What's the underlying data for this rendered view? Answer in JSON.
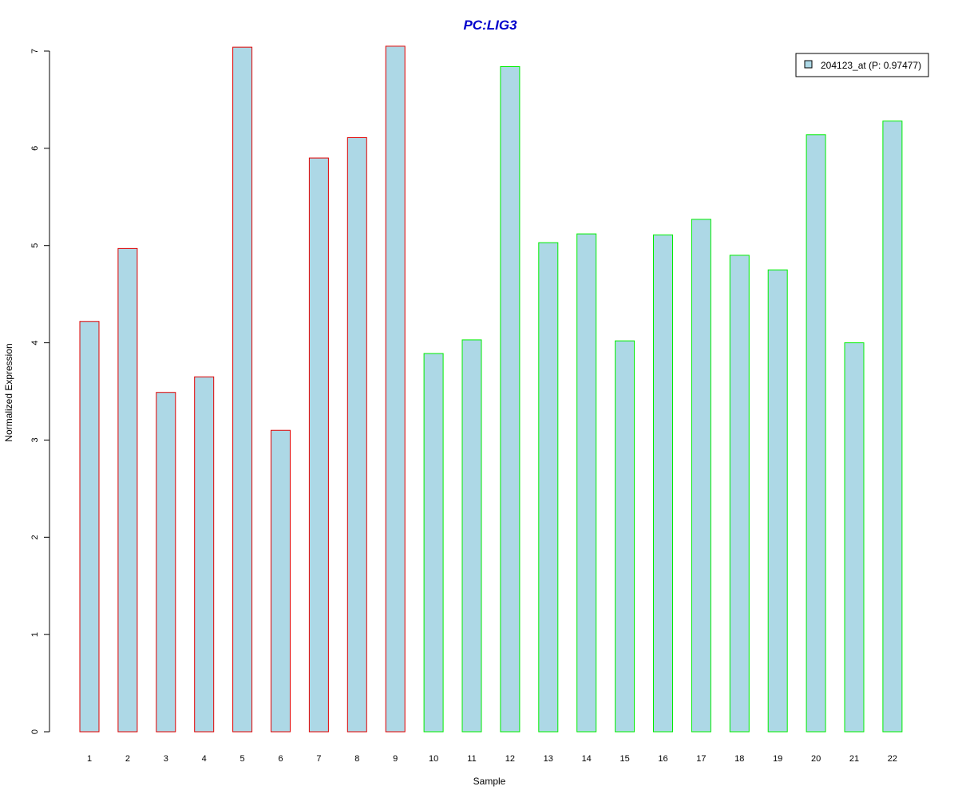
{
  "chart_data": {
    "type": "bar",
    "title": "PC:LIG3",
    "xlabel": "Sample",
    "ylabel": "Normalized Expression",
    "categories": [
      "1",
      "2",
      "3",
      "4",
      "5",
      "6",
      "7",
      "8",
      "9",
      "10",
      "11",
      "12",
      "13",
      "14",
      "15",
      "16",
      "17",
      "18",
      "19",
      "20",
      "21",
      "22"
    ],
    "values": [
      4.22,
      4.97,
      3.49,
      3.65,
      7.04,
      3.1,
      5.9,
      6.11,
      7.05,
      3.89,
      4.03,
      6.84,
      5.03,
      5.12,
      4.02,
      5.11,
      5.27,
      4.9,
      4.75,
      6.14,
      4.0,
      6.28
    ],
    "border_colors": [
      "#e00000",
      "#e00000",
      "#e00000",
      "#e00000",
      "#e00000",
      "#e00000",
      "#e00000",
      "#e00000",
      "#e00000",
      "#00ee00",
      "#00ee00",
      "#00ee00",
      "#00ee00",
      "#00ee00",
      "#00ee00",
      "#00ee00",
      "#00ee00",
      "#00ee00",
      "#00ee00",
      "#00ee00",
      "#00ee00",
      "#00ee00"
    ],
    "fill_color": "#add8e6",
    "title_color": "#0000cc",
    "ylim": [
      0,
      7
    ],
    "yticks": [
      "0",
      "1",
      "2",
      "3",
      "4",
      "5",
      "6",
      "7"
    ],
    "grid": false,
    "legend": {
      "position": "top-right",
      "entries": [
        {
          "label": "204123_at (P: 0.97477)",
          "color": "#add8e6"
        }
      ]
    }
  }
}
